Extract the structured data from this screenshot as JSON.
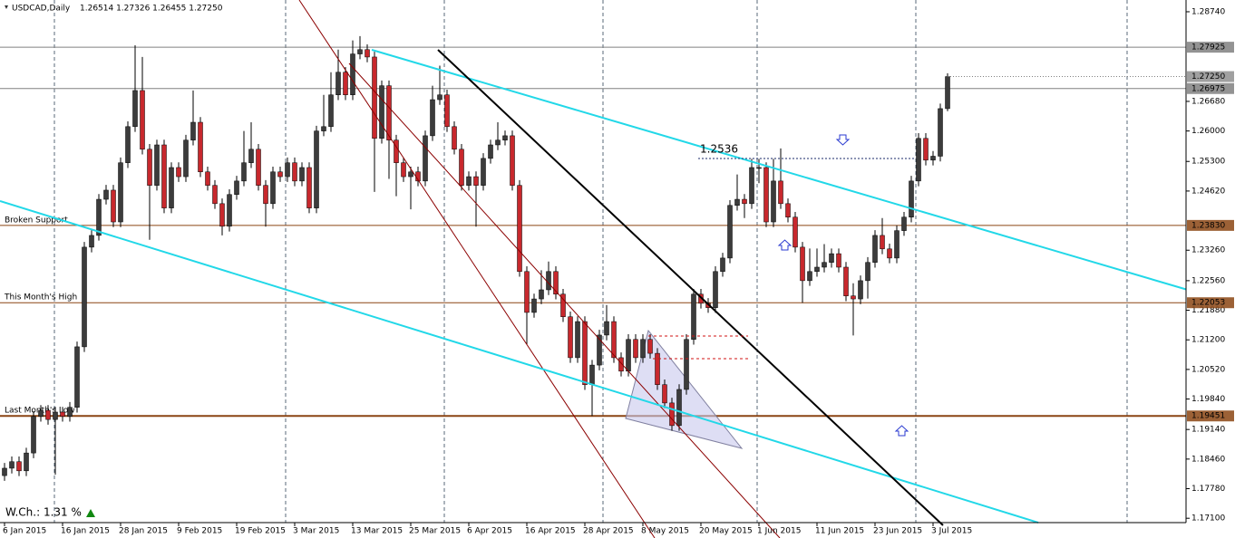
{
  "chart_data": {
    "type": "candlestick",
    "title": "USDCAD,Daily",
    "subtitle": "1.26514 1.27326 1.26455 1.27250",
    "up_color": "#3c3c3c",
    "down_color": "#c8282d",
    "categories": [
      "6 Jan 2015",
      null,
      null,
      null,
      null,
      null,
      null,
      null,
      "16 Jan 2015",
      null,
      null,
      null,
      null,
      null,
      null,
      null,
      "28 Jan 2015",
      null,
      null,
      null,
      null,
      null,
      null,
      null,
      "9 Feb 2015",
      null,
      null,
      null,
      null,
      null,
      null,
      null,
      "19 Feb 2015",
      null,
      null,
      null,
      null,
      null,
      null,
      null,
      "3 Mar 2015",
      null,
      null,
      null,
      null,
      null,
      null,
      null,
      "13 Mar 2015",
      null,
      null,
      null,
      null,
      null,
      null,
      null,
      "25 Mar 2015",
      null,
      null,
      null,
      null,
      null,
      null,
      null,
      "6 Apr 2015",
      null,
      null,
      null,
      null,
      null,
      null,
      null,
      "16 Apr 2015",
      null,
      null,
      null,
      null,
      null,
      null,
      null,
      "28 Apr 2015",
      null,
      null,
      null,
      null,
      null,
      null,
      null,
      "8 May 2015",
      null,
      null,
      null,
      null,
      null,
      null,
      null,
      "20 May 2015",
      null,
      null,
      null,
      null,
      null,
      null,
      null,
      "1 Jun 2015",
      null,
      null,
      null,
      null,
      null,
      null,
      null,
      "11 Jun 2015",
      null,
      null,
      null,
      null,
      null,
      null,
      null,
      "23 Jun 2015",
      null,
      null,
      null,
      null,
      null,
      null,
      null,
      "3 Jul 2015",
      null,
      null
    ],
    "open": [
      1.1808,
      1.1825,
      1.184,
      1.1819,
      1.186,
      1.1944,
      1.1958,
      1.1937,
      1.1954,
      1.1944,
      1.1965,
      1.2104,
      1.2333,
      1.236,
      1.2443,
      1.2464,
      1.2391,
      1.2527,
      1.261,
      1.2693,
      1.2558,
      1.2475,
      1.2568,
      1.2423,
      1.2516,
      1.2495,
      1.2579,
      1.262,
      1.2506,
      1.2475,
      1.2433,
      1.2381,
      1.2454,
      1.2485,
      1.2527,
      1.2558,
      1.2475,
      1.2433,
      1.2506,
      1.2495,
      1.2527,
      1.2485,
      1.2516,
      1.2423,
      1.26,
      1.261,
      1.2683,
      1.2735,
      1.2683,
      1.2777,
      1.2787,
      1.277,
      1.2583,
      1.2704,
      1.2579,
      1.2527,
      1.2495,
      1.2506,
      1.2485,
      1.2589,
      1.2672,
      1.2683,
      1.261,
      1.2558,
      1.2475,
      1.2495,
      1.2475,
      1.2537,
      1.2568,
      1.2579,
      1.2589,
      1.2475,
      1.2277,
      1.2183,
      1.2214,
      1.2235,
      1.2277,
      1.2225,
      1.2173,
      1.2079,
      1.2162,
      1.2017,
      1.2062,
      1.2131,
      1.2162,
      1.2079,
      1.2048,
      1.2121,
      1.2079,
      1.2121,
      1.2089,
      1.2017,
      1.1975,
      1.1923,
      1.2006,
      1.2121,
      1.2225,
      1.2204,
      1.2194,
      1.2277,
      1.2308,
      1.2429,
      1.2443,
      1.2433,
      1.2516,
      1.2516,
      1.2391,
      1.2485,
      1.2433,
      1.2402,
      1.2333,
      1.2256,
      1.2277,
      1.2287,
      1.2298,
      1.2318,
      1.2287,
      1.2221,
      1.2214,
      1.2256,
      1.2298,
      1.236,
      1.2329,
      1.2308,
      1.2371,
      1.2402,
      1.2485,
      1.2583,
      1.2533,
      1.2542,
      1.26514
    ],
    "high": [
      1.1837,
      1.1852,
      1.1852,
      1.1872,
      1.1956,
      1.197,
      1.197,
      1.1966,
      1.1966,
      1.1977,
      1.2116,
      1.2345,
      1.2372,
      1.2455,
      1.2476,
      1.2476,
      1.2539,
      1.2622,
      1.2797,
      1.277,
      1.257,
      1.258,
      1.258,
      1.2528,
      1.2528,
      1.2591,
      1.2693,
      1.2632,
      1.2518,
      1.2487,
      1.2445,
      1.2466,
      1.2497,
      1.26,
      1.262,
      1.257,
      1.2487,
      1.2518,
      1.2518,
      1.2539,
      1.2539,
      1.2528,
      1.2528,
      1.2612,
      1.2683,
      1.2735,
      1.2787,
      1.2747,
      1.2808,
      1.2818,
      1.2799,
      1.2782,
      1.2716,
      1.2716,
      1.2591,
      1.2539,
      1.2518,
      1.2518,
      1.2601,
      1.2704,
      1.275,
      1.2695,
      1.2622,
      1.257,
      1.2507,
      1.2507,
      1.2549,
      1.258,
      1.262,
      1.2601,
      1.2601,
      1.2487,
      1.2289,
      1.2226,
      1.228,
      1.23,
      1.2289,
      1.2237,
      1.2185,
      1.2174,
      1.2174,
      1.2074,
      1.2143,
      1.22,
      1.2174,
      1.2091,
      1.2133,
      1.2133,
      1.2133,
      1.2133,
      1.2101,
      1.2029,
      1.1987,
      1.2018,
      1.2133,
      1.2237,
      1.2237,
      1.2216,
      1.2289,
      1.232,
      1.2441,
      1.25,
      1.2455,
      1.2536,
      1.2536,
      1.2528,
      1.2536,
      1.256,
      1.2445,
      1.2414,
      1.2345,
      1.233,
      1.233,
      1.234,
      1.233,
      1.233,
      1.2299,
      1.225,
      1.2268,
      1.231,
      1.2372,
      1.24,
      1.2341,
      1.2383,
      1.2414,
      1.2497,
      1.2595,
      1.2595,
      1.2554,
      1.2663,
      1.27326
    ],
    "low": [
      1.1796,
      1.1813,
      1.1807,
      1.1807,
      1.1848,
      1.1932,
      1.1925,
      1.181,
      1.1932,
      1.1932,
      1.1953,
      1.2092,
      1.2321,
      1.2348,
      1.2431,
      1.2379,
      1.2379,
      1.2515,
      1.2598,
      1.2546,
      1.235,
      1.2463,
      1.2411,
      1.2411,
      1.2483,
      1.2483,
      1.2567,
      1.2494,
      1.2463,
      1.2421,
      1.236,
      1.2369,
      1.2442,
      1.2473,
      1.2515,
      1.2463,
      1.238,
      1.2421,
      1.2483,
      1.2483,
      1.2473,
      1.2473,
      1.2411,
      1.2411,
      1.2588,
      1.2598,
      1.2671,
      1.2671,
      1.2671,
      1.2765,
      1.2758,
      1.246,
      1.2571,
      1.249,
      1.245,
      1.2483,
      1.242,
      1.2473,
      1.2473,
      1.2577,
      1.266,
      1.2598,
      1.2546,
      1.2463,
      1.2463,
      1.238,
      1.2463,
      1.2525,
      1.2556,
      1.2567,
      1.2463,
      1.2265,
      1.211,
      1.2171,
      1.2202,
      1.2223,
      1.2213,
      1.2161,
      1.2067,
      1.2067,
      1.2005,
      1.1945,
      1.205,
      1.2119,
      1.2067,
      1.2036,
      1.2036,
      1.2067,
      1.2067,
      1.2077,
      1.2005,
      1.1963,
      1.1911,
      1.1911,
      1.1994,
      1.2109,
      1.2192,
      1.2182,
      1.2182,
      1.2265,
      1.2296,
      1.2417,
      1.24,
      1.2421,
      1.248,
      1.2379,
      1.2379,
      1.2421,
      1.239,
      1.2321,
      1.2205,
      1.2244,
      1.2265,
      1.2275,
      1.2286,
      1.2275,
      1.2209,
      1.213,
      1.2202,
      1.2215,
      1.2286,
      1.2317,
      1.2296,
      1.2296,
      1.2359,
      1.239,
      1.2473,
      1.2521,
      1.2521,
      1.253,
      1.26455
    ],
    "close": [
      1.1825,
      1.184,
      1.1819,
      1.186,
      1.1944,
      1.1958,
      1.1937,
      1.1954,
      1.1944,
      1.1965,
      1.2104,
      1.2333,
      1.236,
      1.2443,
      1.2464,
      1.2391,
      1.2527,
      1.261,
      1.2693,
      1.2558,
      1.2475,
      1.2568,
      1.2423,
      1.2516,
      1.2495,
      1.2579,
      1.262,
      1.2506,
      1.2475,
      1.2433,
      1.2381,
      1.2454,
      1.2485,
      1.2527,
      1.2558,
      1.2475,
      1.2433,
      1.2506,
      1.2495,
      1.2527,
      1.2485,
      1.2516,
      1.2423,
      1.26,
      1.261,
      1.2683,
      1.2735,
      1.2683,
      1.2777,
      1.2787,
      1.277,
      1.2583,
      1.2704,
      1.2579,
      1.2527,
      1.2495,
      1.2506,
      1.2485,
      1.2589,
      1.2672,
      1.2683,
      1.261,
      1.2558,
      1.2475,
      1.2495,
      1.2475,
      1.2537,
      1.2568,
      1.2579,
      1.2589,
      1.2475,
      1.2277,
      1.2183,
      1.2214,
      1.2235,
      1.2277,
      1.2225,
      1.2173,
      1.2079,
      1.2162,
      1.2017,
      1.2062,
      1.2131,
      1.2162,
      1.2079,
      1.2048,
      1.2121,
      1.2079,
      1.2121,
      1.2089,
      1.2017,
      1.1975,
      1.1923,
      1.2006,
      1.2121,
      1.2225,
      1.2204,
      1.2194,
      1.2277,
      1.2308,
      1.2429,
      1.2443,
      1.2433,
      1.2516,
      1.2516,
      1.2391,
      1.2485,
      1.2433,
      1.2402,
      1.2333,
      1.2256,
      1.2277,
      1.2287,
      1.2298,
      1.2318,
      1.2287,
      1.2221,
      1.2214,
      1.2256,
      1.2298,
      1.236,
      1.2329,
      1.2308,
      1.2371,
      1.2402,
      1.2485,
      1.2583,
      1.2533,
      1.2542,
      1.26514,
      1.2725
    ],
    "current_label": "1.27250",
    "ylim": [
      1.17,
      1.2901
    ],
    "yticks": [
      {
        "value": 1.2874,
        "label": "1.28740"
      },
      {
        "value": 1.2668,
        "label": "1.26680"
      },
      {
        "value": 1.26,
        "label": "1.26000"
      },
      {
        "value": 1.253,
        "label": "1.25300"
      },
      {
        "value": 1.2462,
        "label": "1.24620"
      },
      {
        "value": 1.2326,
        "label": "1.23260"
      },
      {
        "value": 1.2256,
        "label": "1.22560"
      },
      {
        "value": 1.2188,
        "label": "1.21880"
      },
      {
        "value": 1.212,
        "label": "1.21200"
      },
      {
        "value": 1.2052,
        "label": "1.20520"
      },
      {
        "value": 1.1984,
        "label": "1.19840"
      },
      {
        "value": 1.1914,
        "label": "1.19140"
      },
      {
        "value": 1.1846,
        "label": "1.18460"
      },
      {
        "value": 1.1778,
        "label": "1.17780"
      },
      {
        "value": 1.171,
        "label": "1.17100"
      }
    ],
    "levels": [
      {
        "value": 1.27925,
        "value_label": "1.27925",
        "color": "#808080"
      },
      {
        "value": 1.26975,
        "value_label": "1.26975",
        "color": "#808080"
      },
      {
        "name": "Broken Support",
        "value": 1.2383,
        "value_label": "1.23830",
        "color": "#8b4513"
      },
      {
        "name": "This Month's High",
        "value": 1.22053,
        "value_label": "1.22053",
        "color": "#8b4513"
      },
      {
        "name": "Last Month's Low",
        "value": 1.19451,
        "value_label": "1.19451",
        "color": "#8b4513"
      }
    ],
    "annotation": "1.2536",
    "weekly_change": "W.Ch.: 1.31 %"
  }
}
